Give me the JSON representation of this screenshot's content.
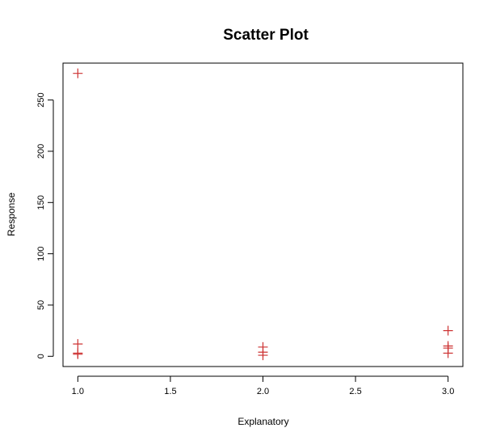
{
  "chart_data": {
    "type": "scatter",
    "title": "Scatter Plot",
    "xlabel": "Explanatory",
    "ylabel": "Response",
    "xlim": [
      0.92,
      3.08
    ],
    "ylim": [
      -10,
      286
    ],
    "x_ticks": [
      1.0,
      1.5,
      2.0,
      2.5,
      3.0
    ],
    "x_tick_labels": [
      "1.0",
      "1.5",
      "2.0",
      "2.5",
      "3.0"
    ],
    "y_ticks": [
      0,
      50,
      100,
      150,
      200,
      250
    ],
    "y_tick_labels": [
      "0",
      "50",
      "100",
      "150",
      "200",
      "250"
    ],
    "grid": false,
    "marker": "plus",
    "marker_color": "#cd3333",
    "points": [
      {
        "x": 1.0,
        "y": 276
      },
      {
        "x": 1.0,
        "y": 12
      },
      {
        "x": 1.0,
        "y": 3
      },
      {
        "x": 1.0,
        "y": 2
      },
      {
        "x": 2.0,
        "y": 9
      },
      {
        "x": 2.0,
        "y": 4
      },
      {
        "x": 2.0,
        "y": 1
      },
      {
        "x": 3.0,
        "y": 25
      },
      {
        "x": 3.0,
        "y": 10
      },
      {
        "x": 3.0,
        "y": 8
      },
      {
        "x": 3.0,
        "y": 3
      }
    ]
  }
}
